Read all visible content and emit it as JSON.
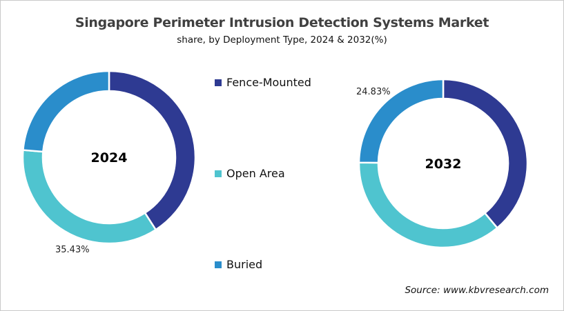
{
  "title": "Singapore Perimeter Intrusion Detection Systems Market",
  "subtitle": "share, by Deployment Type, 2024 & 2032(%)",
  "source": "Source: www.kbvresearch.com",
  "colors": {
    "fence_mounted": "#2E3A92",
    "open_area": "#4FC4CF",
    "buried": "#2A8DCB"
  },
  "legend": [
    {
      "label": "Fence-Mounted",
      "color": "#2E3A92"
    },
    {
      "label": "Open Area",
      "color": "#4FC4CF"
    },
    {
      "label": "Buried",
      "color": "#2A8DCB"
    }
  ],
  "charts": {
    "y2024": {
      "center_label": "2024",
      "data_label": "35.43%"
    },
    "y2032": {
      "center_label": "2032",
      "data_label": "24.83%"
    }
  },
  "chart_data": [
    {
      "type": "pie",
      "subtype": "donut",
      "title": "Singapore Perimeter Intrusion Detection Systems Market",
      "subtitle": "share, by Deployment Type, 2024 & 2032(%)",
      "center_label": "2024",
      "categories": [
        "Fence-Mounted",
        "Open Area",
        "Buried"
      ],
      "values": [
        40.9,
        35.43,
        23.67
      ],
      "labeled_values": {
        "Open Area": 35.43
      },
      "legend_position": "center"
    },
    {
      "type": "pie",
      "subtype": "donut",
      "title": "Singapore Perimeter Intrusion Detection Systems Market",
      "subtitle": "share, by Deployment Type, 2024 & 2032(%)",
      "center_label": "2032",
      "categories": [
        "Fence-Mounted",
        "Open Area",
        "Buried"
      ],
      "values": [
        38.9,
        36.27,
        24.83
      ],
      "labeled_values": {
        "Buried": 24.83
      },
      "legend_position": "center"
    }
  ]
}
